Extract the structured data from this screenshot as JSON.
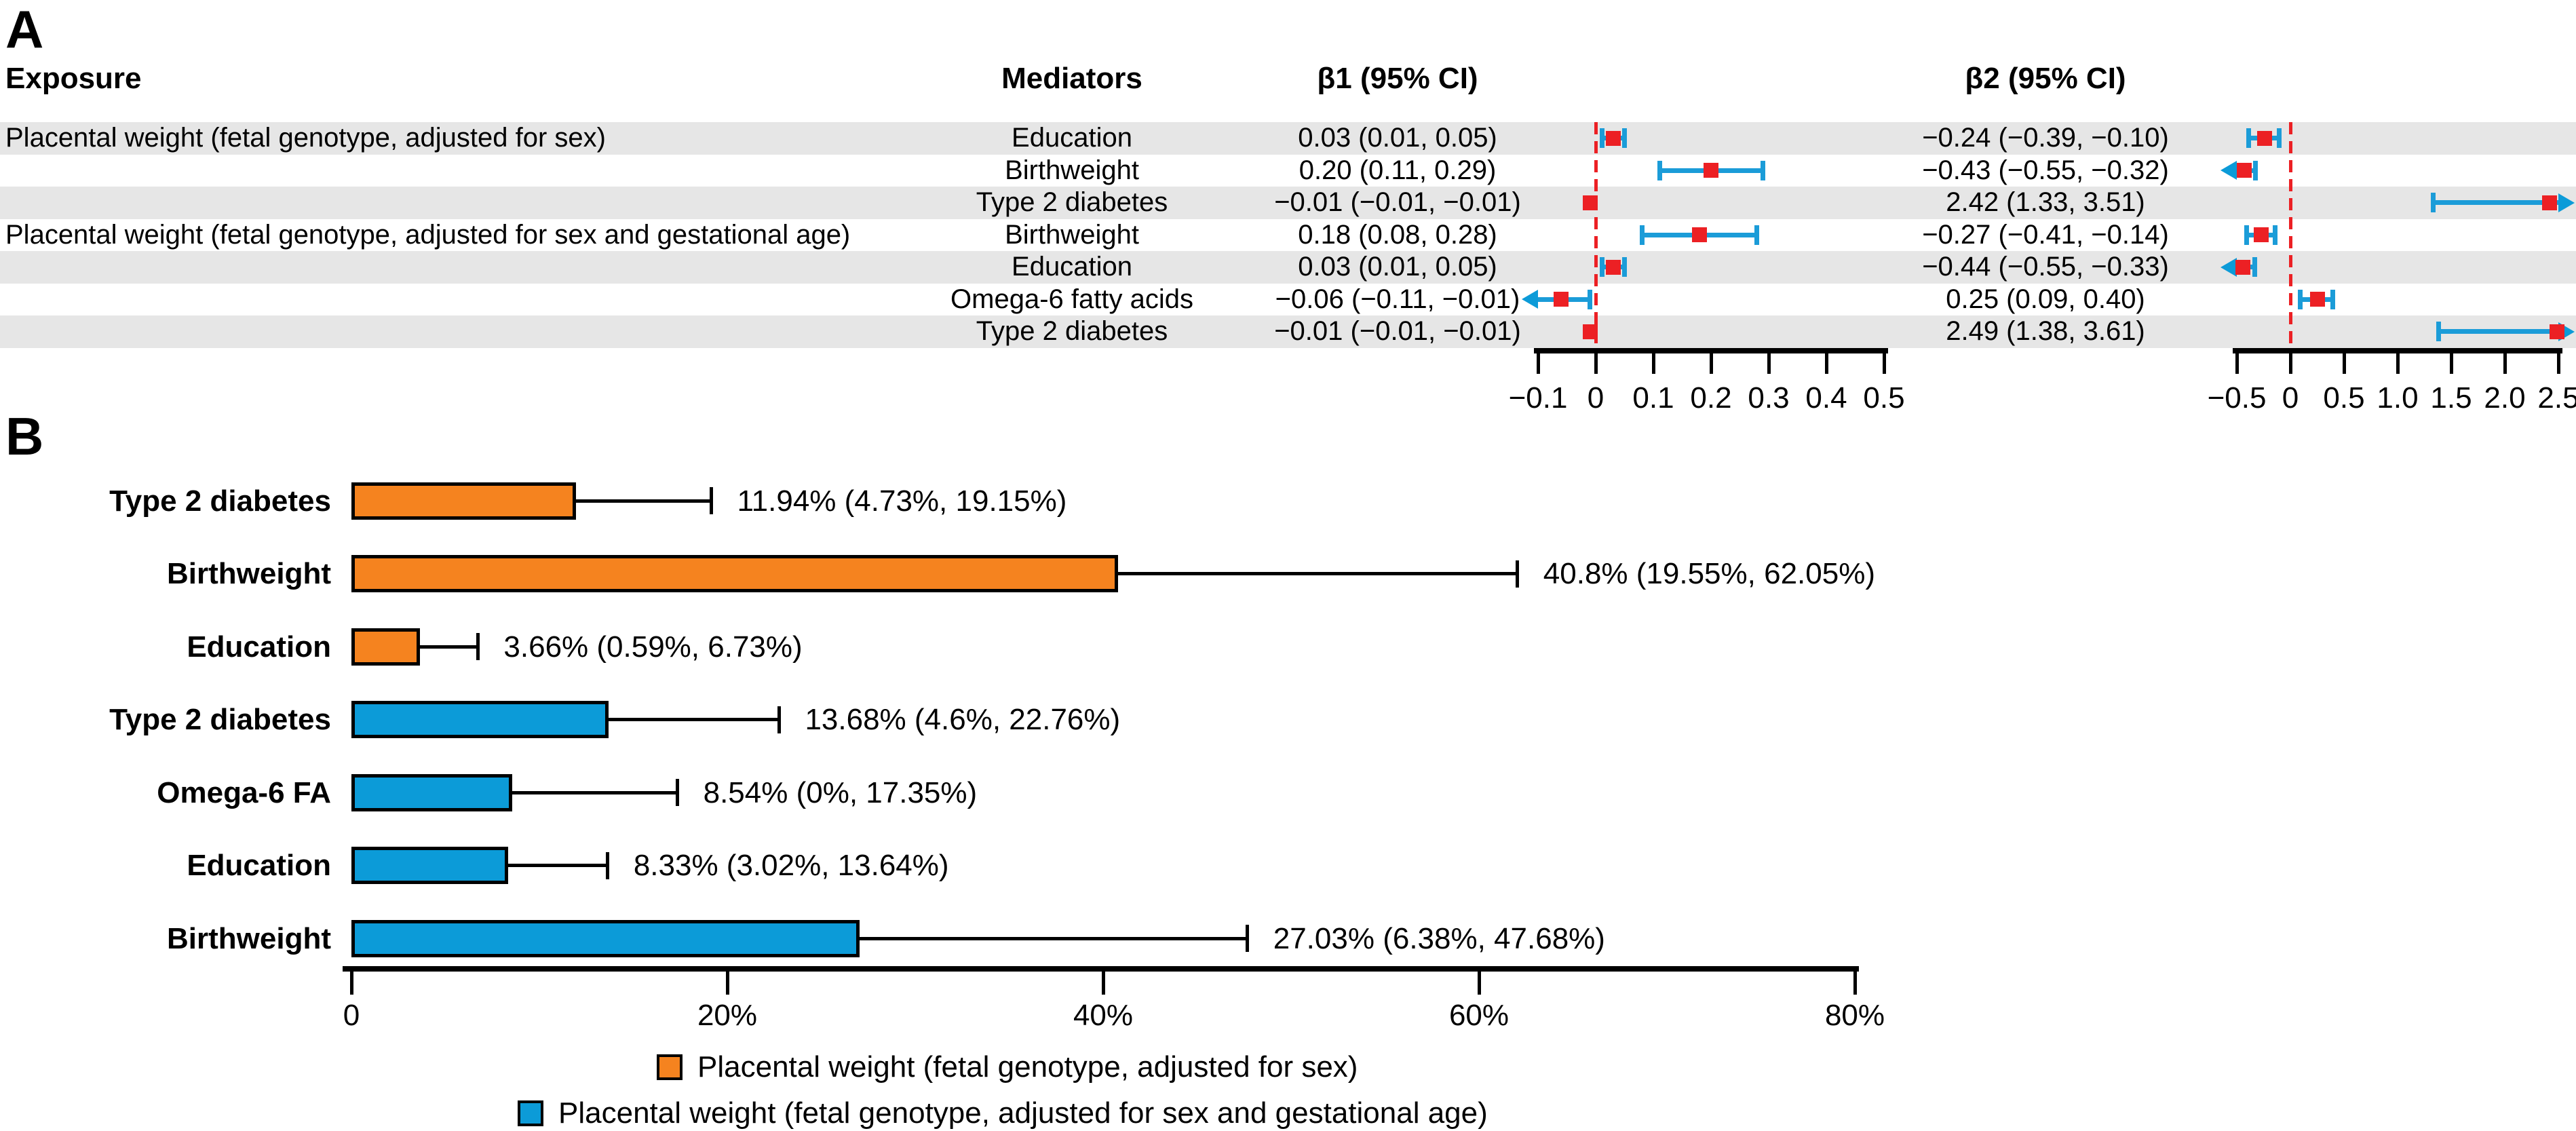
{
  "figure": {
    "panel_a_label": "A",
    "panel_b_label": "B"
  },
  "colors": {
    "orange": "#F5831F",
    "blue": "#0C9BD8",
    "red": "#EC2024",
    "stripe": "#E6E6E6",
    "black": "#000000"
  },
  "chart_data": [
    {
      "type": "table",
      "panel": "A",
      "subtype": "forest-plot-table",
      "headers": [
        "Exposure",
        "Mediators",
        "β1 (95% CI)",
        "β2 (95% CI)"
      ],
      "rows": [
        {
          "exposure": "Placental weight (fetal genotype, adjusted for sex)",
          "mediator": "Education",
          "b1_text": "0.03 (0.01, 0.05)",
          "b1_est": 0.03,
          "b1_lo": 0.01,
          "b1_hi": 0.05,
          "b2_text": "−0.24 (−0.39, −0.10)",
          "b2_est": -0.24,
          "b2_lo": -0.39,
          "b2_hi": -0.1,
          "shaded": true
        },
        {
          "exposure": "",
          "mediator": "Birthweight",
          "b1_text": "0.20 (0.11, 0.29)",
          "b1_est": 0.2,
          "b1_lo": 0.11,
          "b1_hi": 0.29,
          "b2_text": "−0.43 (−0.55, −0.32)",
          "b2_est": -0.43,
          "b2_lo": -0.55,
          "b2_hi": -0.32,
          "shaded": false
        },
        {
          "exposure": "",
          "mediator": "Type 2 diabetes",
          "b1_text": "−0.01 (−0.01, −0.01)",
          "b1_est": -0.01,
          "b1_lo": -0.01,
          "b1_hi": -0.01,
          "b2_text": "2.42 (1.33, 3.51)",
          "b2_est": 2.42,
          "b2_lo": 1.33,
          "b2_hi": 3.51,
          "shaded": true
        },
        {
          "exposure": "Placental weight (fetal genotype, adjusted for sex and gestational age)",
          "mediator": "Birthweight",
          "b1_text": "0.18 (0.08, 0.28)",
          "b1_est": 0.18,
          "b1_lo": 0.08,
          "b1_hi": 0.28,
          "b2_text": "−0.27 (−0.41, −0.14)",
          "b2_est": -0.27,
          "b2_lo": -0.41,
          "b2_hi": -0.14,
          "shaded": false
        },
        {
          "exposure": "",
          "mediator": "Education",
          "b1_text": "0.03 (0.01, 0.05)",
          "b1_est": 0.03,
          "b1_lo": 0.01,
          "b1_hi": 0.05,
          "b2_text": "−0.44 (−0.55, −0.33)",
          "b2_est": -0.44,
          "b2_lo": -0.55,
          "b2_hi": -0.33,
          "shaded": true
        },
        {
          "exposure": "",
          "mediator": "Omega-6 fatty acids",
          "b1_text": "−0.06 (−0.11, −0.01)",
          "b1_est": -0.06,
          "b1_lo": -0.11,
          "b1_hi": -0.01,
          "b2_text": "0.25 (0.09, 0.40)",
          "b2_est": 0.25,
          "b2_lo": 0.09,
          "b2_hi": 0.4,
          "shaded": false
        },
        {
          "exposure": "",
          "mediator": "Type 2 diabetes",
          "b1_text": "−0.01 (−0.01, −0.01)",
          "b1_est": -0.01,
          "b1_lo": -0.01,
          "b1_hi": -0.01,
          "b2_text": "2.49 (1.38, 3.61)",
          "b2_est": 2.49,
          "b2_lo": 1.38,
          "b2_hi": 3.61,
          "shaded": true
        }
      ],
      "axis_b1": {
        "min": -0.1,
        "max": 0.5,
        "tick_values": [
          -0.1,
          0,
          0.1,
          0.2,
          0.3,
          0.4,
          0.5
        ],
        "tick_labels": [
          "−0.1",
          "0",
          "0.1",
          "0.2",
          "0.3",
          "0.4",
          "0.5"
        ],
        "zero_line": 0,
        "zero_line_style": "red-dashed"
      },
      "axis_b2": {
        "min": -0.5,
        "max": 2.5,
        "tick_values": [
          -0.5,
          0,
          0.5,
          1.0,
          1.5,
          2.0,
          2.5
        ],
        "tick_labels": [
          "−0.5",
          "0",
          "0.5",
          "1.0",
          "1.5",
          "2.0",
          "2.5"
        ],
        "zero_line": 0,
        "zero_line_style": "red-dashed"
      },
      "marker_style": "red-square-blue-whiskers"
    },
    {
      "type": "bar",
      "panel": "B",
      "orientation": "horizontal",
      "categories": [
        "Type 2 diabetes",
        "Birthweight",
        "Education",
        "Type 2 diabetes",
        "Omega-6 FA",
        "Education",
        "Birthweight"
      ],
      "values": [
        11.94,
        40.8,
        3.66,
        13.68,
        8.54,
        8.33,
        27.03
      ],
      "ci_low": [
        4.73,
        19.55,
        0.59,
        4.6,
        0,
        3.02,
        6.38
      ],
      "ci_high": [
        19.15,
        62.05,
        6.73,
        22.76,
        17.35,
        13.64,
        47.68
      ],
      "bar_labels": [
        "11.94% (4.73%, 19.15%)",
        "40.8% (19.55%, 62.05%)",
        "3.66% (0.59%, 6.73%)",
        "13.68% (4.6%, 22.76%)",
        "8.54% (0%, 17.35%)",
        "8.33% (3.02%, 13.64%)",
        "27.03% (6.38%, 47.68%)"
      ],
      "groups": [
        "orange",
        "orange",
        "orange",
        "blue",
        "blue",
        "blue",
        "blue"
      ],
      "xlim": [
        0,
        80
      ],
      "xtick_values": [
        0,
        20,
        40,
        60,
        80
      ],
      "xtick_labels": [
        "0",
        "20%",
        "40%",
        "60%",
        "80%"
      ],
      "grid": false,
      "legend_position": "bottom",
      "legend": [
        {
          "color_key": "orange",
          "label": "Placental weight (fetal genotype, adjusted for sex)"
        },
        {
          "color_key": "blue",
          "label": "Placental weight (fetal genotype, adjusted for sex and gestational age)"
        }
      ]
    }
  ]
}
